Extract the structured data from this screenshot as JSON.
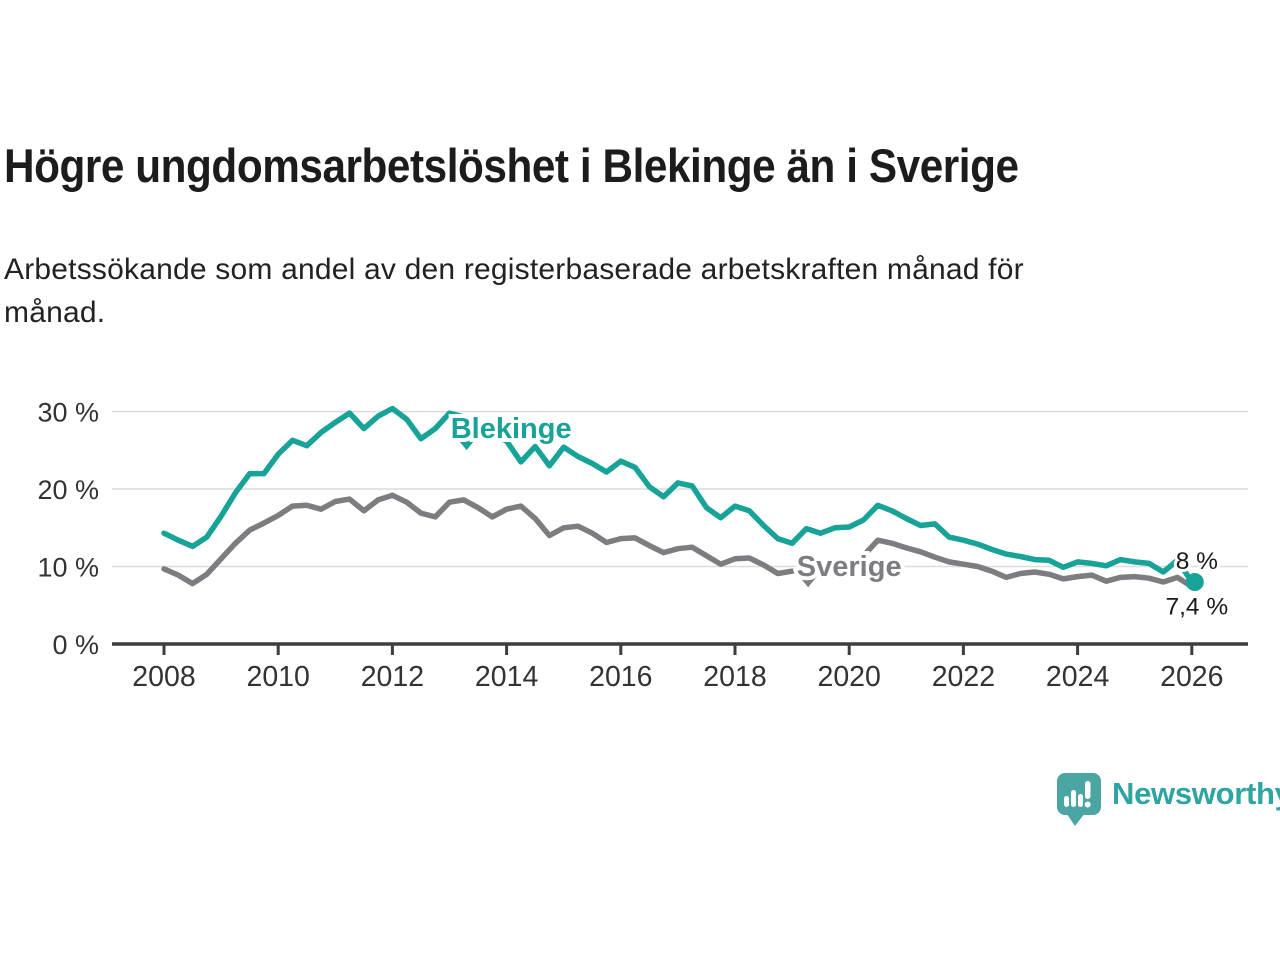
{
  "header": {
    "title": "Högre ungdomsarbetslöshet i Blekinge än i Sverige",
    "subtitle_line1": "Arbetssökande som andel av den registerbaserade arbetskraften månad för",
    "subtitle_line2": "månad."
  },
  "branding": {
    "logo_text": "Newsworthy",
    "logo_icon": "speech-bubble-bar-chart-icon",
    "brand_color": "#2ea5a0"
  },
  "chart_data": {
    "type": "line",
    "title": "Högre ungdomsarbetslöshet i Blekinge än i Sverige",
    "subtitle": "Arbetssökande som andel av den registerbaserade arbetskraften månad för månad.",
    "ylabel": "",
    "xlabel": "",
    "ylim": [
      0,
      32
    ],
    "xlim": [
      2007.1,
      2026.98
    ],
    "grid": "horizontal",
    "legend_position": "inline-labels",
    "y_ticks": [
      {
        "value": 0,
        "label": "0 %"
      },
      {
        "value": 10,
        "label": "10 %"
      },
      {
        "value": 20,
        "label": "20 %"
      },
      {
        "value": 30,
        "label": "30 %"
      }
    ],
    "x_ticks": [
      {
        "value": 2008,
        "label": "2008"
      },
      {
        "value": 2010,
        "label": "2010"
      },
      {
        "value": 2012,
        "label": "2012"
      },
      {
        "value": 2014,
        "label": "2014"
      },
      {
        "value": 2016,
        "label": "2016"
      },
      {
        "value": 2018,
        "label": "2018"
      },
      {
        "value": 2020,
        "label": "2020"
      },
      {
        "value": 2022,
        "label": "2022"
      },
      {
        "value": 2024,
        "label": "2024"
      },
      {
        "value": 2026,
        "label": "2026"
      }
    ],
    "x": [
      2008.0,
      2008.25,
      2008.5,
      2008.75,
      2009.0,
      2009.25,
      2009.5,
      2009.75,
      2010.0,
      2010.25,
      2010.5,
      2010.75,
      2011.0,
      2011.25,
      2011.5,
      2011.75,
      2012.0,
      2012.25,
      2012.5,
      2012.75,
      2013.0,
      2013.25,
      2013.5,
      2013.75,
      2014.0,
      2014.25,
      2014.5,
      2014.75,
      2015.0,
      2015.25,
      2015.5,
      2015.75,
      2016.0,
      2016.25,
      2016.5,
      2016.75,
      2017.0,
      2017.25,
      2017.5,
      2017.75,
      2018.0,
      2018.25,
      2018.5,
      2018.75,
      2019.0,
      2019.25,
      2019.5,
      2019.75,
      2020.0,
      2020.25,
      2020.5,
      2020.75,
      2021.0,
      2021.25,
      2021.5,
      2021.75,
      2022.0,
      2022.25,
      2022.5,
      2022.75,
      2023.0,
      2023.25,
      2023.5,
      2023.75,
      2024.0,
      2024.25,
      2024.5,
      2024.75,
      2025.0,
      2025.25,
      2025.5,
      2025.75,
      2026.0
    ],
    "series": [
      {
        "name": "Blekinge",
        "color": "#17a398",
        "end_value_label": "8 %",
        "end_marker": true,
        "values": [
          14.3,
          13.4,
          12.6,
          13.8,
          16.5,
          19.5,
          22.0,
          22.0,
          24.5,
          26.3,
          25.6,
          27.3,
          28.6,
          29.8,
          27.8,
          29.4,
          30.4,
          29.0,
          26.5,
          27.8,
          29.8,
          29.3,
          28.3,
          27.0,
          26.2,
          23.5,
          25.5,
          23.0,
          25.4,
          24.2,
          23.3,
          22.2,
          23.6,
          22.8,
          20.3,
          19.0,
          20.8,
          20.4,
          17.6,
          16.3,
          17.8,
          17.2,
          15.3,
          13.6,
          13.0,
          14.9,
          14.3,
          15.0,
          15.1,
          16.0,
          17.9,
          17.2,
          16.2,
          15.3,
          15.5,
          13.8,
          13.4,
          12.9,
          12.2,
          11.6,
          11.3,
          10.9,
          10.8,
          9.9,
          10.6,
          10.4,
          10.1,
          10.9,
          10.6,
          10.4,
          9.3,
          10.8,
          8.0
        ]
      },
      {
        "name": "Sverige",
        "color": "#7c7d80",
        "end_value_label": "7,4 %",
        "end_marker": false,
        "values": [
          9.7,
          8.9,
          7.8,
          9.0,
          11.0,
          13.0,
          14.7,
          15.6,
          16.6,
          17.8,
          17.9,
          17.4,
          18.4,
          18.7,
          17.2,
          18.6,
          19.2,
          18.3,
          16.9,
          16.4,
          18.3,
          18.6,
          17.6,
          16.4,
          17.4,
          17.8,
          16.2,
          14.0,
          15.0,
          15.2,
          14.3,
          13.1,
          13.6,
          13.7,
          12.7,
          11.8,
          12.3,
          12.5,
          11.4,
          10.3,
          11.0,
          11.1,
          10.2,
          9.1,
          9.4,
          9.6,
          9.5,
          9.2,
          9.4,
          11.4,
          13.4,
          13.0,
          12.4,
          11.9,
          11.2,
          10.6,
          10.3,
          10.0,
          9.4,
          8.6,
          9.1,
          9.3,
          9.0,
          8.4,
          8.7,
          8.9,
          8.1,
          8.6,
          8.7,
          8.5,
          8.0,
          8.6,
          7.4
        ]
      }
    ],
    "annotations": [
      {
        "label": "Blekinge",
        "color": "#17a398",
        "text_year": 2014.08,
        "text_value": 27.9,
        "marker_year": 2013.3,
        "marker_value": 25.8
      },
      {
        "label": "Sverige",
        "color": "#7c7d80",
        "text_year": 2020.0,
        "text_value": 10.1,
        "marker_year": 2019.28,
        "marker_value": 8.1
      }
    ],
    "axis_color": "#3d3d3d",
    "grid_color": "#dcdcdc",
    "tick_label_color": "#333333",
    "end_label_color": "#1a1a1a"
  }
}
